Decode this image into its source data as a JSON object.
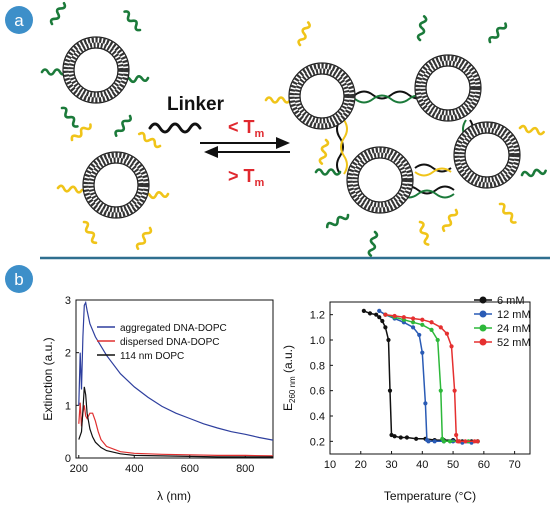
{
  "panel_a": {
    "badge": "a",
    "linker_label": "Linker",
    "forward_label": "< T",
    "reverse_label": "> T",
    "subscript": "m"
  },
  "panel_b": {
    "badge": "b"
  },
  "chart_data": [
    {
      "type": "line",
      "xlabel": "λ (nm)",
      "ylabel": "Extinction (a.u.)",
      "xlim": [
        190,
        900
      ],
      "ylim": [
        0,
        3
      ],
      "xticks": [
        "200",
        "400",
        "600",
        "800"
      ],
      "yticks": [
        "0",
        "1",
        "2",
        "3"
      ],
      "legend_position": "top-right",
      "series": [
        {
          "name": "aggregated DNA-DOPC",
          "color": "#2e3f9e",
          "x": [
            200,
            205,
            210,
            215,
            220,
            225,
            230,
            240,
            260,
            300,
            350,
            400,
            450,
            500,
            550,
            600,
            650,
            700,
            750,
            800,
            850,
            900
          ],
          "y": [
            1.0,
            2.0,
            1.3,
            2.3,
            2.9,
            2.95,
            2.8,
            2.55,
            2.3,
            1.95,
            1.6,
            1.35,
            1.15,
            0.98,
            0.85,
            0.75,
            0.65,
            0.57,
            0.5,
            0.45,
            0.39,
            0.34
          ]
        },
        {
          "name": "dispersed DNA-DOPC",
          "color": "#e03030",
          "x": [
            200,
            205,
            210,
            215,
            220,
            225,
            230,
            240,
            250,
            260,
            270,
            280,
            300,
            350,
            400,
            500,
            600,
            700,
            800,
            900
          ],
          "y": [
            0.65,
            1.05,
            0.6,
            0.85,
            1.0,
            0.8,
            0.75,
            0.85,
            0.85,
            0.7,
            0.5,
            0.35,
            0.22,
            0.12,
            0.09,
            0.07,
            0.06,
            0.05,
            0.05,
            0.04
          ]
        },
        {
          "name": "114 nm DOPC",
          "color": "#111111",
          "x": [
            200,
            210,
            215,
            220,
            225,
            230,
            240,
            250,
            260,
            280,
            300,
            350,
            400,
            500,
            600,
            700,
            800,
            900
          ],
          "y": [
            0.35,
            0.5,
            0.9,
            1.35,
            1.2,
            0.85,
            0.55,
            0.4,
            0.3,
            0.2,
            0.14,
            0.08,
            0.05,
            0.04,
            0.03,
            0.02,
            0.02,
            0.02
          ]
        }
      ]
    },
    {
      "type": "line",
      "xlabel": "Temperature (°C)",
      "ylabel": "E",
      "ylabel_sub": "260 nm",
      "ylabel_tail": " (a.u.)",
      "xlim": [
        10,
        75
      ],
      "ylim": [
        0.1,
        1.3
      ],
      "xticks": [
        "10",
        "20",
        "30",
        "40",
        "50",
        "60",
        "70"
      ],
      "yticks": [
        "0.2",
        "0.4",
        "0.6",
        "0.8",
        "1.0",
        "1.2"
      ],
      "legend_position": "top-right",
      "series": [
        {
          "name": "6 mM",
          "color": "#111111",
          "x": [
            21,
            23,
            25,
            26,
            27,
            28,
            29,
            29.5,
            30,
            31,
            33,
            35,
            38,
            41,
            44,
            47,
            50,
            53,
            56,
            58
          ],
          "y": [
            1.23,
            1.21,
            1.2,
            1.18,
            1.15,
            1.1,
            1.0,
            0.6,
            0.25,
            0.24,
            0.23,
            0.23,
            0.22,
            0.22,
            0.21,
            0.21,
            0.21,
            0.2,
            0.2,
            0.2
          ]
        },
        {
          "name": "12 mM",
          "color": "#2a5bb5",
          "x": [
            26,
            28,
            31,
            34,
            37,
            39,
            40,
            41,
            41.5,
            42,
            44,
            47,
            50,
            53,
            56,
            58
          ],
          "y": [
            1.23,
            1.2,
            1.17,
            1.14,
            1.1,
            1.04,
            0.9,
            0.5,
            0.21,
            0.2,
            0.2,
            0.2,
            0.2,
            0.19,
            0.19,
            0.2
          ]
        },
        {
          "name": "24 mM",
          "color": "#2db83a",
          "x": [
            28,
            31,
            34,
            37,
            40,
            43,
            45,
            46,
            46.5,
            47,
            49,
            52,
            55,
            58
          ],
          "y": [
            1.2,
            1.18,
            1.16,
            1.14,
            1.12,
            1.08,
            1.0,
            0.6,
            0.22,
            0.2,
            0.2,
            0.2,
            0.2,
            0.2
          ]
        },
        {
          "name": "52 mM",
          "color": "#e53030",
          "x": [
            28,
            31,
            34,
            37,
            40,
            43,
            46,
            48,
            49.5,
            50.5,
            51,
            51.5,
            52,
            54,
            57,
            58
          ],
          "y": [
            1.2,
            1.19,
            1.18,
            1.17,
            1.16,
            1.14,
            1.1,
            1.05,
            0.95,
            0.6,
            0.25,
            0.2,
            0.2,
            0.2,
            0.2,
            0.2
          ]
        }
      ]
    }
  ]
}
